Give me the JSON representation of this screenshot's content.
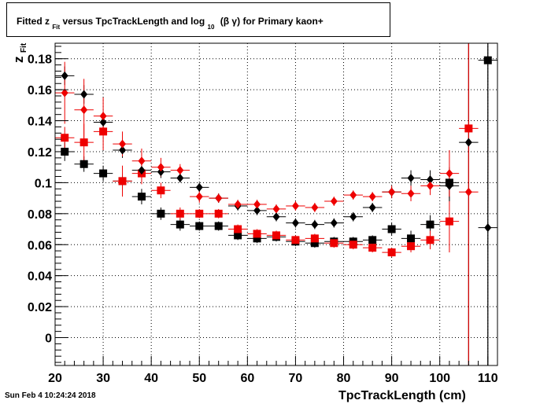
{
  "timestamp": "Sun Feb  4 10:24:24 2018",
  "title": {
    "part1": "Fitted  z",
    "sub1": "Fit",
    "part2": "  versus TpcTrackLength and log",
    "sub2": "10",
    "part3": "(β γ)  for Primary kaon+"
  },
  "ylabel_main": "z",
  "ylabel_sub": "Fit",
  "colors": {
    "black_series": "#000000",
    "red_series": "#ee0000"
  },
  "chart_data": {
    "type": "scatter",
    "xlabel": "TpcTrackLength (cm)",
    "ylabel": "zFit",
    "xlim": [
      20,
      112
    ],
    "ylim": [
      -0.018,
      0.19
    ],
    "grid": true,
    "xticks": [
      20,
      30,
      40,
      50,
      60,
      70,
      80,
      90,
      100,
      110
    ],
    "yticks": [
      0,
      0.02,
      0.04,
      0.06,
      0.08,
      0.1,
      0.12,
      0.14,
      0.16,
      0.18
    ],
    "ytick_labels": [
      "0",
      "0.02",
      "0.04",
      "0.06",
      "0.08",
      "0.1",
      "0.12",
      "0.14",
      "0.16",
      "0.18"
    ],
    "series": [
      {
        "marker": "square",
        "color": "#000000",
        "x": [
          22,
          26,
          30,
          34,
          38,
          42,
          46,
          50,
          54,
          58,
          62,
          66,
          70,
          74,
          78,
          82,
          86,
          90,
          94,
          98,
          102,
          110
        ],
        "y": [
          0.12,
          0.112,
          0.106,
          0.101,
          0.091,
          0.08,
          0.073,
          0.072,
          0.072,
          0.066,
          0.064,
          0.065,
          0.062,
          0.061,
          0.062,
          0.062,
          0.063,
          0.07,
          0.064,
          0.073,
          0.1,
          0.179
        ],
        "yerr": [
          0.006,
          0.005,
          0.005,
          0.005,
          0.005,
          0.004,
          0.004,
          0.003,
          0.003,
          0.003,
          0.003,
          0.003,
          0.003,
          0.003,
          0.003,
          0.003,
          0.003,
          0.004,
          0.005,
          0.006,
          0.01,
          0.2
        ]
      },
      {
        "marker": "square",
        "color": "#ee0000",
        "x": [
          22,
          26,
          30,
          34,
          38,
          42,
          46,
          50,
          54,
          58,
          62,
          66,
          70,
          74,
          78,
          82,
          86,
          90,
          94,
          98,
          102,
          106
        ],
        "y": [
          0.129,
          0.126,
          0.133,
          0.101,
          0.106,
          0.095,
          0.08,
          0.08,
          0.08,
          0.07,
          0.067,
          0.066,
          0.063,
          0.064,
          0.061,
          0.06,
          0.058,
          0.055,
          0.059,
          0.063,
          0.075,
          0.135
        ],
        "yerr": [
          0.007,
          0.012,
          0.012,
          0.01,
          0.007,
          0.005,
          0.004,
          0.003,
          0.003,
          0.003,
          0.003,
          0.003,
          0.003,
          0.003,
          0.003,
          0.003,
          0.003,
          0.003,
          0.004,
          0.006,
          0.02,
          0.15
        ]
      },
      {
        "marker": "diamond",
        "color": "#000000",
        "x": [
          22,
          26,
          30,
          34,
          38,
          42,
          46,
          50,
          54,
          58,
          62,
          66,
          70,
          74,
          78,
          82,
          86,
          90,
          94,
          98,
          102,
          106,
          110
        ],
        "y": [
          0.169,
          0.157,
          0.139,
          0.121,
          0.108,
          0.107,
          0.103,
          0.097,
          0.09,
          0.085,
          0.082,
          0.078,
          0.074,
          0.073,
          0.074,
          0.078,
          0.084,
          0.094,
          0.103,
          0.102,
          0.098,
          0.126,
          0.071
        ],
        "yerr": [
          0.006,
          0.006,
          0.005,
          0.005,
          0.004,
          0.004,
          0.003,
          0.003,
          0.003,
          0.003,
          0.003,
          0.003,
          0.003,
          0.003,
          0.003,
          0.003,
          0.003,
          0.004,
          0.005,
          0.006,
          0.01,
          0.2,
          0.2
        ]
      },
      {
        "marker": "diamond",
        "color": "#ee0000",
        "x": [
          22,
          26,
          30,
          34,
          38,
          42,
          46,
          50,
          54,
          58,
          62,
          66,
          70,
          74,
          78,
          82,
          86,
          90,
          94,
          98,
          102,
          106
        ],
        "y": [
          0.158,
          0.147,
          0.143,
          0.125,
          0.114,
          0.11,
          0.108,
          0.091,
          0.09,
          0.086,
          0.086,
          0.083,
          0.085,
          0.084,
          0.088,
          0.092,
          0.091,
          0.094,
          0.093,
          0.098,
          0.106,
          0.094
        ],
        "yerr": [
          0.02,
          0.02,
          0.012,
          0.008,
          0.008,
          0.006,
          0.004,
          0.004,
          0.003,
          0.003,
          0.003,
          0.003,
          0.003,
          0.003,
          0.003,
          0.003,
          0.003,
          0.004,
          0.005,
          0.006,
          0.015,
          0.12
        ]
      }
    ]
  }
}
